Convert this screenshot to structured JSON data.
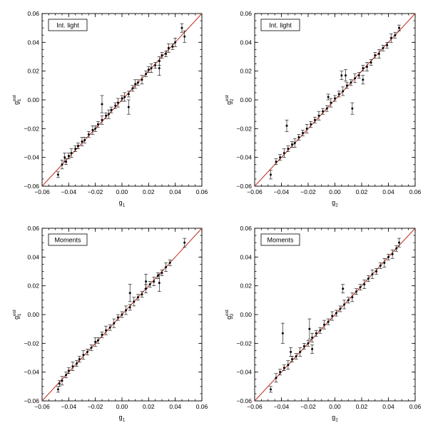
{
  "chart_data": [
    {
      "type": "scatter",
      "legend_label": "Int. light",
      "legend_placement": "top-left",
      "xlabel_base": "g",
      "xlabel_sub": "1",
      "ylabel_base": "g",
      "ylabel_sub": "1",
      "ylabel_sup": "est",
      "xlim": [
        -0.06,
        0.06
      ],
      "ylim": [
        -0.06,
        0.06
      ],
      "reference_line_color": "#c0392b",
      "x": [
        -0.048,
        -0.045,
        -0.042,
        -0.04,
        -0.038,
        -0.035,
        -0.033,
        -0.03,
        -0.028,
        -0.025,
        -0.022,
        -0.02,
        -0.018,
        -0.015,
        -0.012,
        -0.01,
        -0.008,
        -0.005,
        -0.003,
        0.0,
        0.002,
        0.005,
        0.008,
        0.01,
        0.012,
        0.015,
        0.018,
        0.02,
        0.022,
        0.025,
        0.028,
        0.03,
        0.033,
        0.035,
        0.038,
        0.04,
        0.045,
        -0.015,
        0.005,
        0.028,
        -0.043,
        0.047
      ],
      "y": [
        -0.052,
        -0.045,
        -0.043,
        -0.039,
        -0.037,
        -0.034,
        -0.032,
        -0.029,
        -0.028,
        -0.024,
        -0.021,
        -0.02,
        -0.017,
        -0.014,
        -0.011,
        -0.01,
        -0.007,
        -0.004,
        -0.002,
        0.001,
        0.002,
        0.004,
        0.008,
        0.011,
        0.012,
        0.014,
        0.018,
        0.021,
        0.022,
        0.024,
        0.027,
        0.031,
        0.032,
        0.036,
        0.037,
        0.04,
        0.05,
        -0.003,
        -0.005,
        0.022,
        -0.04,
        0.044
      ],
      "yerr": [
        0.002,
        0.003,
        0.002,
        0.002,
        0.003,
        0.002,
        0.002,
        0.003,
        0.002,
        0.002,
        0.003,
        0.002,
        0.002,
        0.003,
        0.002,
        0.003,
        0.002,
        0.002,
        0.003,
        0.002,
        0.003,
        0.002,
        0.002,
        0.003,
        0.002,
        0.003,
        0.002,
        0.002,
        0.003,
        0.002,
        0.003,
        0.002,
        0.002,
        0.003,
        0.002,
        0.003,
        0.003,
        0.006,
        0.005,
        0.005,
        0.003,
        0.004
      ]
    },
    {
      "type": "scatter",
      "legend_label": "Int. light",
      "legend_placement": "top-left",
      "xlabel_base": "g",
      "xlabel_sub": "2",
      "ylabel_base": "g",
      "ylabel_sub": "2",
      "ylabel_sup": "est",
      "xlim": [
        -0.06,
        0.06
      ],
      "ylim": [
        -0.06,
        0.06
      ],
      "reference_line_color": "#c0392b",
      "x": [
        -0.048,
        -0.044,
        -0.041,
        -0.038,
        -0.035,
        -0.032,
        -0.03,
        -0.027,
        -0.024,
        -0.021,
        -0.018,
        -0.015,
        -0.012,
        -0.009,
        -0.006,
        -0.003,
        0.0,
        0.003,
        0.006,
        0.009,
        0.012,
        0.015,
        0.018,
        0.021,
        0.024,
        0.027,
        0.03,
        0.033,
        0.036,
        0.039,
        0.042,
        0.045,
        0.048,
        -0.036,
        0.013,
        0.008,
        0.005,
        -0.005,
        0.021
      ],
      "y": [
        -0.052,
        -0.043,
        -0.04,
        -0.037,
        -0.034,
        -0.031,
        -0.03,
        -0.026,
        -0.023,
        -0.02,
        -0.017,
        -0.014,
        -0.011,
        -0.008,
        -0.006,
        -0.002,
        0.001,
        0.004,
        0.006,
        0.01,
        0.012,
        0.015,
        0.017,
        0.022,
        0.023,
        0.026,
        0.031,
        0.032,
        0.036,
        0.038,
        0.043,
        0.045,
        0.05,
        -0.018,
        -0.006,
        0.017,
        0.017,
        0.002,
        0.014
      ],
      "yerr": [
        0.003,
        0.002,
        0.002,
        0.003,
        0.002,
        0.002,
        0.003,
        0.002,
        0.002,
        0.003,
        0.002,
        0.002,
        0.003,
        0.002,
        0.002,
        0.003,
        0.002,
        0.002,
        0.003,
        0.002,
        0.002,
        0.003,
        0.002,
        0.002,
        0.003,
        0.002,
        0.002,
        0.003,
        0.002,
        0.002,
        0.003,
        0.002,
        0.002,
        0.004,
        0.004,
        0.004,
        0.003,
        0.002,
        0.003
      ]
    },
    {
      "type": "scatter",
      "legend_label": "Moments",
      "legend_placement": "top-left",
      "xlabel_base": "g",
      "xlabel_sub": "1",
      "ylabel_base": "g",
      "ylabel_sub": "1",
      "ylabel_sup": "est",
      "xlim": [
        -0.06,
        0.06
      ],
      "ylim": [
        -0.06,
        0.06
      ],
      "reference_line_color": "#c0392b",
      "x": [
        -0.048,
        -0.045,
        -0.042,
        -0.04,
        -0.037,
        -0.034,
        -0.032,
        -0.029,
        -0.026,
        -0.023,
        -0.02,
        -0.018,
        -0.015,
        -0.012,
        -0.009,
        -0.006,
        -0.003,
        0.0,
        0.003,
        0.006,
        0.009,
        0.012,
        0.015,
        0.018,
        0.021,
        0.024,
        0.027,
        0.03,
        0.033,
        0.036,
        0.047,
        0.006,
        0.028,
        0.018,
        -0.047
      ],
      "y": [
        -0.052,
        -0.046,
        -0.042,
        -0.039,
        -0.036,
        -0.034,
        -0.031,
        -0.028,
        -0.026,
        -0.023,
        -0.019,
        -0.018,
        -0.014,
        -0.011,
        -0.009,
        -0.006,
        -0.002,
        0.0,
        0.003,
        0.005,
        0.009,
        0.012,
        0.014,
        0.018,
        0.021,
        0.023,
        0.027,
        0.029,
        0.033,
        0.036,
        0.05,
        0.015,
        0.022,
        0.023,
        -0.048
      ],
      "yerr": [
        0.002,
        0.003,
        0.002,
        0.002,
        0.003,
        0.002,
        0.002,
        0.003,
        0.002,
        0.002,
        0.003,
        0.002,
        0.002,
        0.003,
        0.002,
        0.003,
        0.002,
        0.002,
        0.003,
        0.002,
        0.003,
        0.002,
        0.002,
        0.003,
        0.002,
        0.003,
        0.002,
        0.002,
        0.003,
        0.002,
        0.003,
        0.006,
        0.006,
        0.005,
        0.002
      ]
    },
    {
      "type": "scatter",
      "legend_label": "Moments",
      "legend_placement": "top-left",
      "xlabel_base": "g",
      "xlabel_sub": "2",
      "ylabel_base": "g",
      "ylabel_sub": "2",
      "ylabel_sup": "est",
      "xlim": [
        -0.06,
        0.06
      ],
      "ylim": [
        -0.06,
        0.06
      ],
      "reference_line_color": "#c0392b",
      "x": [
        -0.048,
        -0.044,
        -0.041,
        -0.038,
        -0.035,
        -0.032,
        -0.029,
        -0.026,
        -0.023,
        -0.02,
        -0.017,
        -0.014,
        -0.011,
        -0.008,
        -0.005,
        -0.002,
        0.001,
        0.004,
        0.007,
        0.01,
        0.013,
        0.016,
        0.019,
        0.022,
        0.025,
        0.028,
        0.031,
        0.034,
        0.037,
        0.04,
        0.043,
        0.046,
        0.048,
        -0.039,
        -0.019,
        -0.017,
        0.006,
        -0.033
      ],
      "y": [
        -0.052,
        -0.044,
        -0.04,
        -0.037,
        -0.035,
        -0.031,
        -0.029,
        -0.026,
        -0.022,
        -0.02,
        -0.016,
        -0.013,
        -0.011,
        -0.007,
        -0.005,
        -0.001,
        0.001,
        0.004,
        0.007,
        0.01,
        0.012,
        0.016,
        0.019,
        0.021,
        0.025,
        0.028,
        0.03,
        0.034,
        0.036,
        0.04,
        0.042,
        0.046,
        0.05,
        -0.013,
        -0.01,
        -0.024,
        0.018,
        -0.026
      ],
      "yerr": [
        0.002,
        0.003,
        0.002,
        0.002,
        0.003,
        0.002,
        0.002,
        0.003,
        0.002,
        0.002,
        0.003,
        0.002,
        0.002,
        0.003,
        0.002,
        0.003,
        0.002,
        0.002,
        0.003,
        0.002,
        0.003,
        0.002,
        0.002,
        0.003,
        0.002,
        0.003,
        0.002,
        0.002,
        0.003,
        0.002,
        0.003,
        0.002,
        0.003,
        0.007,
        0.007,
        0.003,
        0.003,
        0.003
      ]
    }
  ]
}
